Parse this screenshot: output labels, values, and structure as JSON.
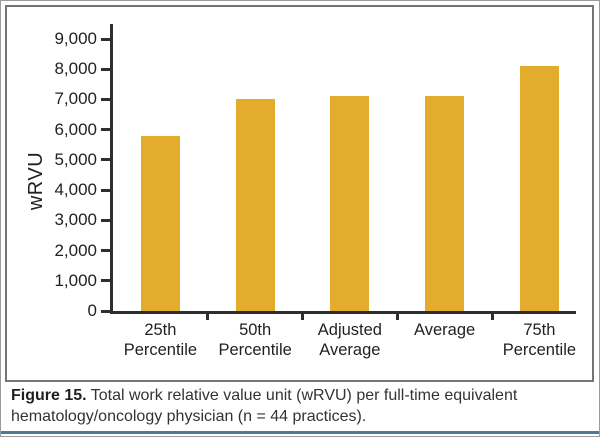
{
  "figure": {
    "caption_bold": "Figure 15.",
    "caption_text": " Total work relative value unit (wRVU) per full-time equivalent hematology/oncology physician (n = 44 practices)."
  },
  "chart_data": {
    "type": "bar",
    "title": "",
    "xlabel": "",
    "ylabel": "wRVU",
    "categories": [
      "25th Percentile",
      "50th Percentile",
      "Adjusted Average",
      "Average",
      "75th Percentile"
    ],
    "values": [
      5800,
      7000,
      7100,
      7100,
      8100
    ],
    "ylim": [
      0,
      9000
    ],
    "ytick_step": 1000,
    "yticks": [
      {
        "value": 0,
        "label": "0"
      },
      {
        "value": 1000,
        "label": "1,000"
      },
      {
        "value": 2000,
        "label": "2,000"
      },
      {
        "value": 3000,
        "label": "3,000"
      },
      {
        "value": 4000,
        "label": "4,000"
      },
      {
        "value": 5000,
        "label": "5,000"
      },
      {
        "value": 6000,
        "label": "6,000"
      },
      {
        "value": 7000,
        "label": "7,000"
      },
      {
        "value": 8000,
        "label": "8,000"
      },
      {
        "value": 9000,
        "label": "9,000"
      }
    ],
    "grid": false,
    "legend": null,
    "bar_color": "#e4ac2c",
    "axis_color": "#2e2e2e"
  },
  "colors": {
    "caption_rule": "#4e7b93",
    "panel_border": "#757575",
    "page_border": "#9b9b9b",
    "text": "#231f20"
  }
}
